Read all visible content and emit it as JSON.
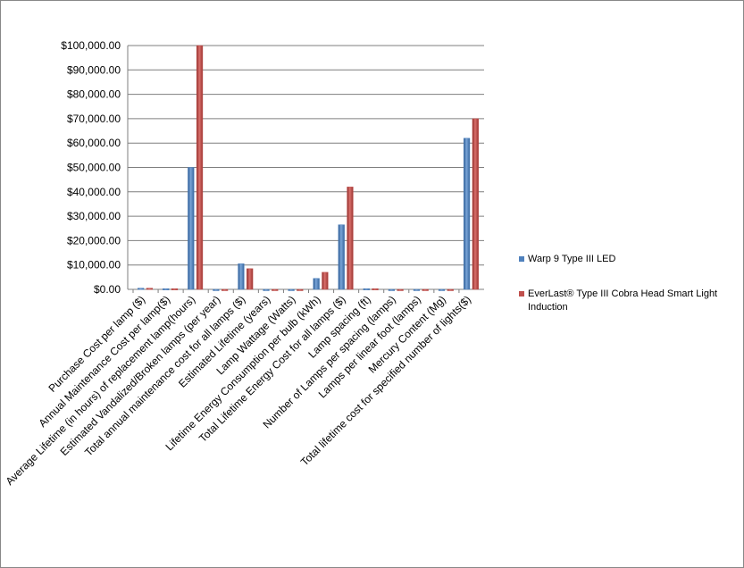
{
  "chart_data": {
    "type": "bar",
    "categories": [
      "Purchase Cost per lamp ($)",
      "Annual Maintenance Cost per lamp($)",
      "Average Lifetime (in hours) of replacement lamp(hours)",
      "Estimated Vandalized/Broken lamps (per year)",
      "Total annual maintenance cost for all lamps ($)",
      "Estimated Lifetime (years)",
      "Lamp Wattage (Watts)",
      "Lifetime Energy Consumption per bulb (kWh)",
      "Total Lifetime Energy Cost for all lamps ($)",
      "Lamp spacing (ft)",
      "Number of Lamps per spacing (lamps)",
      "Lamps per linear foot (lamps)",
      "Mercury Content (Mg)",
      "Total lifetime cost for specified number of lights($)"
    ],
    "series": [
      {
        "name": "Warp 9 Type III LED",
        "color": "#4f81bd",
        "values": [
          500,
          300,
          50000,
          0,
          10500,
          0,
          0,
          4500,
          26500,
          300,
          0,
          0,
          0,
          62000
        ]
      },
      {
        "name": "EverLast® Type III Cobra Head Smart Light Induction",
        "color": "#c0504d",
        "values": [
          500,
          300,
          100000,
          0,
          8500,
          0,
          0,
          7000,
          42000,
          300,
          0,
          0,
          0,
          70000
        ]
      }
    ],
    "ylim": [
      0,
      100000
    ],
    "yticks": [
      {
        "value": 0,
        "label": "$0.00"
      },
      {
        "value": 10000,
        "label": "$10,000.00"
      },
      {
        "value": 20000,
        "label": "$20,000.00"
      },
      {
        "value": 30000,
        "label": "$30,000.00"
      },
      {
        "value": 40000,
        "label": "$40,000.00"
      },
      {
        "value": 50000,
        "label": "$50,000.00"
      },
      {
        "value": 60000,
        "label": "$60,000.00"
      },
      {
        "value": 70000,
        "label": "$70,000.00"
      },
      {
        "value": 80000,
        "label": "$80,000.00"
      },
      {
        "value": 90000,
        "label": "$90,000.00"
      },
      {
        "value": 100000,
        "label": "$100,000.00"
      }
    ],
    "grid": true
  }
}
